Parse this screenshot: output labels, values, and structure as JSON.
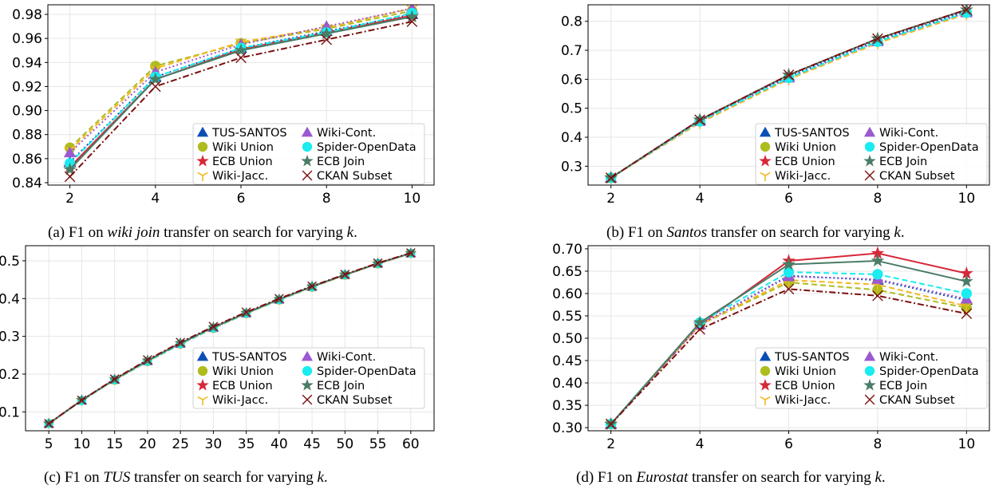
{
  "legend_entries": [
    "TUS-SANTOS",
    "Wiki-Cont.",
    "Wiki Union",
    "Spider-OpenData",
    "ECB Union",
    "ECB Join",
    "Wiki-Jacc.",
    "CKAN Subset"
  ],
  "series_styles": [
    {
      "name": "TUS-SANTOS",
      "color": "#0b4fb5",
      "marker": "triangle",
      "dash": "dotted"
    },
    {
      "name": "Wiki Union",
      "color": "#aebc1e",
      "marker": "circle",
      "dash": "dashed"
    },
    {
      "name": "ECB Union",
      "color": "#d62838",
      "marker": "star",
      "dash": "solid"
    },
    {
      "name": "Wiki-Jacc.",
      "color": "#f5b821",
      "marker": "tri",
      "dash": "dashed"
    },
    {
      "name": "Wiki-Cont.",
      "color": "#9b59d0",
      "marker": "triangle",
      "dash": "dotted"
    },
    {
      "name": "Spider-OpenData",
      "color": "#1aecf0",
      "marker": "circle",
      "dash": "dashed"
    },
    {
      "name": "ECB Join",
      "color": "#4a7c66",
      "marker": "star",
      "dash": "solid"
    },
    {
      "name": "CKAN Subset",
      "color": "#7a0f0f",
      "marker": "x",
      "dash": "dashdot"
    }
  ],
  "chart_data": [
    {
      "type": "line",
      "caption_parts": [
        "(a) F1 on ",
        "wiki join",
        " transfer on search for varying ",
        "k",
        "."
      ],
      "x": [
        2,
        4,
        6,
        8,
        10
      ],
      "xticks": [
        "2",
        "4",
        "6",
        "8",
        "10"
      ],
      "yticks": [
        "0.84",
        "0.86",
        "0.88",
        "0.90",
        "0.92",
        "0.94",
        "0.96",
        "0.98"
      ],
      "ylim": [
        0.838,
        0.988
      ],
      "legend_position": "bottom-right",
      "grid": true,
      "series": [
        {
          "name": "TUS-SANTOS",
          "values": [
            0.857,
            0.928,
            0.952,
            0.966,
            0.98
          ]
        },
        {
          "name": "Wiki Union",
          "values": [
            0.869,
            0.937,
            0.956,
            0.968,
            0.983
          ]
        },
        {
          "name": "ECB Union",
          "values": [
            0.853,
            0.926,
            0.951,
            0.965,
            0.979
          ]
        },
        {
          "name": "Wiki-Jacc.",
          "values": [
            0.867,
            0.935,
            0.957,
            0.969,
            0.985
          ]
        },
        {
          "name": "Wiki-Cont.",
          "values": [
            0.865,
            0.932,
            0.955,
            0.97,
            0.985
          ]
        },
        {
          "name": "Spider-OpenData",
          "values": [
            0.856,
            0.928,
            0.952,
            0.965,
            0.981
          ]
        },
        {
          "name": "ECB Join",
          "values": [
            0.851,
            0.926,
            0.95,
            0.964,
            0.978
          ]
        },
        {
          "name": "CKAN Subset",
          "values": [
            0.845,
            0.92,
            0.944,
            0.959,
            0.974
          ]
        }
      ]
    },
    {
      "type": "line",
      "caption_parts": [
        "(b) F1 on ",
        "Santos",
        " transfer on search for varying ",
        "k",
        "."
      ],
      "x": [
        2,
        4,
        6,
        8,
        10
      ],
      "xticks": [
        "2",
        "4",
        "6",
        "8",
        "10"
      ],
      "yticks": [
        "0.3",
        "0.4",
        "0.5",
        "0.6",
        "0.7",
        "0.8"
      ],
      "ylim": [
        0.235,
        0.857
      ],
      "legend_position": "bottom-right",
      "grid": true,
      "series": [
        {
          "name": "TUS-SANTOS",
          "values": [
            0.26,
            0.46,
            0.61,
            0.735,
            0.835
          ]
        },
        {
          "name": "Wiki Union",
          "values": [
            0.26,
            0.455,
            0.605,
            0.73,
            0.83
          ]
        },
        {
          "name": "ECB Union",
          "values": [
            0.26,
            0.46,
            0.615,
            0.74,
            0.84
          ]
        },
        {
          "name": "Wiki-Jacc.",
          "values": [
            0.26,
            0.45,
            0.6,
            0.725,
            0.825
          ]
        },
        {
          "name": "Wiki-Cont.",
          "values": [
            0.26,
            0.455,
            0.605,
            0.73,
            0.83
          ]
        },
        {
          "name": "Spider-OpenData",
          "values": [
            0.26,
            0.455,
            0.605,
            0.73,
            0.83
          ]
        },
        {
          "name": "ECB Join",
          "values": [
            0.26,
            0.46,
            0.615,
            0.74,
            0.84
          ]
        },
        {
          "name": "CKAN Subset",
          "values": [
            0.26,
            0.46,
            0.615,
            0.74,
            0.84
          ]
        }
      ]
    },
    {
      "type": "line",
      "caption_parts": [
        "(c) F1 on ",
        "TUS",
        " transfer on search for varying ",
        "k",
        "."
      ],
      "x": [
        5,
        10,
        15,
        20,
        25,
        30,
        35,
        40,
        45,
        50,
        55,
        60
      ],
      "xticks": [
        "5",
        "10",
        "15",
        "20",
        "25",
        "30",
        "35",
        "40",
        "45",
        "50",
        "55",
        "60"
      ],
      "yticks": [
        "0.1",
        "0.2",
        "0.3",
        "0.4",
        "0.5"
      ],
      "ylim": [
        0.05,
        0.54
      ],
      "legend_position": "bottom-right",
      "grid": true,
      "series": [
        {
          "name": "TUS-SANTOS",
          "values": [
            0.069,
            0.131,
            0.186,
            0.236,
            0.282,
            0.324,
            0.362,
            0.398,
            0.432,
            0.463,
            0.493,
            0.52
          ]
        },
        {
          "name": "Wiki Union",
          "values": [
            0.069,
            0.13,
            0.184,
            0.233,
            0.279,
            0.321,
            0.36,
            0.396,
            0.43,
            0.462,
            0.492,
            0.52
          ]
        },
        {
          "name": "ECB Union",
          "values": [
            0.069,
            0.131,
            0.186,
            0.236,
            0.282,
            0.324,
            0.362,
            0.398,
            0.432,
            0.463,
            0.493,
            0.52
          ]
        },
        {
          "name": "Wiki-Jacc.",
          "values": [
            0.069,
            0.13,
            0.185,
            0.234,
            0.28,
            0.322,
            0.361,
            0.397,
            0.431,
            0.463,
            0.493,
            0.52
          ]
        },
        {
          "name": "Wiki-Cont.",
          "values": [
            0.069,
            0.13,
            0.185,
            0.234,
            0.28,
            0.322,
            0.361,
            0.397,
            0.431,
            0.463,
            0.493,
            0.52
          ]
        },
        {
          "name": "Spider-OpenData",
          "values": [
            0.069,
            0.13,
            0.185,
            0.234,
            0.28,
            0.322,
            0.361,
            0.397,
            0.431,
            0.463,
            0.493,
            0.52
          ]
        },
        {
          "name": "ECB Join",
          "values": [
            0.069,
            0.131,
            0.186,
            0.236,
            0.282,
            0.324,
            0.362,
            0.398,
            0.432,
            0.463,
            0.493,
            0.52
          ]
        },
        {
          "name": "CKAN Subset",
          "values": [
            0.069,
            0.131,
            0.187,
            0.238,
            0.284,
            0.326,
            0.364,
            0.4,
            0.433,
            0.464,
            0.494,
            0.521
          ]
        }
      ]
    },
    {
      "type": "line",
      "caption_parts": [
        "(d) F1 on ",
        "Eurostat",
        " transfer on search for varying ",
        "k",
        "."
      ],
      "x": [
        2,
        4,
        6,
        8,
        10
      ],
      "xticks": [
        "2",
        "4",
        "6",
        "8",
        "10"
      ],
      "yticks": [
        "0.30",
        "0.35",
        "0.40",
        "0.45",
        "0.50",
        "0.55",
        "0.60",
        "0.65",
        "0.70"
      ],
      "ylim": [
        0.293,
        0.707
      ],
      "legend_position": "bottom-right",
      "grid": true,
      "series": [
        {
          "name": "TUS-SANTOS",
          "values": [
            0.308,
            0.53,
            0.64,
            0.63,
            0.585
          ]
        },
        {
          "name": "Wiki Union",
          "values": [
            0.308,
            0.53,
            0.625,
            0.608,
            0.568
          ]
        },
        {
          "name": "ECB Union",
          "values": [
            0.308,
            0.53,
            0.673,
            0.69,
            0.645
          ]
        },
        {
          "name": "Wiki-Jacc.",
          "values": [
            0.308,
            0.53,
            0.63,
            0.62,
            0.572
          ]
        },
        {
          "name": "Wiki-Cont.",
          "values": [
            0.308,
            0.53,
            0.638,
            0.632,
            0.588
          ]
        },
        {
          "name": "Spider-OpenData",
          "values": [
            0.308,
            0.535,
            0.648,
            0.643,
            0.6
          ]
        },
        {
          "name": "ECB Join",
          "values": [
            0.308,
            0.535,
            0.665,
            0.673,
            0.627
          ]
        },
        {
          "name": "CKAN Subset",
          "values": [
            0.308,
            0.52,
            0.61,
            0.595,
            0.555
          ]
        }
      ]
    }
  ]
}
